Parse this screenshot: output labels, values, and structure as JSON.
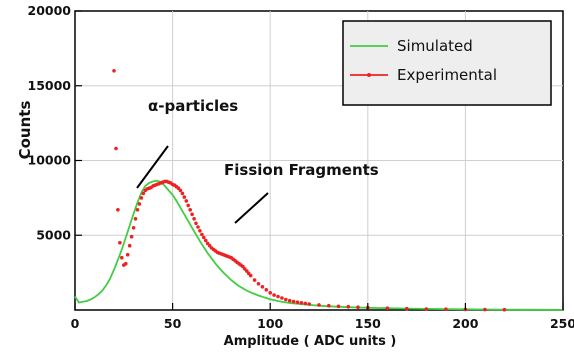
{
  "chart_data": {
    "type": "scatter",
    "xlabel": "Amplitude ( ADC units )",
    "ylabel": "Counts",
    "xlim": [
      0,
      250
    ],
    "ylim": [
      0,
      20000
    ],
    "x_ticks": [
      0,
      50,
      100,
      150,
      200,
      250
    ],
    "y_ticks": [
      5000,
      10000,
      15000,
      20000
    ],
    "grid": true,
    "legend_position": "top-right",
    "annotations": [
      {
        "text": "α-particles",
        "x": 48,
        "y": 13500
      },
      {
        "text": "Fission Fragments",
        "x": 82,
        "y": 9300
      }
    ],
    "series": [
      {
        "name": "Simulated",
        "style": "line",
        "color": "#44cc44",
        "x": [
          0,
          2,
          4,
          6,
          8,
          10,
          12,
          14,
          16,
          18,
          20,
          22,
          24,
          26,
          28,
          30,
          32,
          34,
          36,
          38,
          40,
          42,
          44,
          46,
          48,
          50,
          52,
          54,
          56,
          58,
          60,
          62,
          64,
          66,
          68,
          70,
          72,
          74,
          76,
          78,
          80,
          82,
          84,
          86,
          88,
          90,
          92,
          94,
          96,
          98,
          100,
          102,
          104,
          106,
          108,
          110,
          115,
          120,
          125,
          130,
          140,
          150,
          160,
          170,
          180,
          190,
          200,
          210,
          220,
          230,
          240,
          250
        ],
        "y": [
          900,
          500,
          550,
          600,
          700,
          850,
          1050,
          1300,
          1650,
          2100,
          2700,
          3350,
          4050,
          4850,
          5650,
          6450,
          7200,
          7850,
          8300,
          8500,
          8600,
          8650,
          8550,
          8300,
          8000,
          7700,
          7300,
          6850,
          6400,
          5950,
          5500,
          5050,
          4600,
          4200,
          3800,
          3450,
          3100,
          2800,
          2500,
          2250,
          2000,
          1800,
          1600,
          1450,
          1300,
          1180,
          1070,
          970,
          880,
          800,
          720,
          660,
          600,
          550,
          510,
          470,
          400,
          340,
          290,
          250,
          190,
          150,
          120,
          95,
          75,
          60,
          45,
          35,
          25,
          20,
          15,
          10
        ]
      },
      {
        "name": "Experimental",
        "style": "points",
        "color": "#ee2222",
        "x": [
          20,
          21,
          22,
          23,
          24,
          25,
          26,
          27,
          28,
          29,
          30,
          31,
          32,
          33,
          34,
          35,
          36,
          37,
          38,
          39,
          40,
          41,
          42,
          43,
          44,
          45,
          46,
          47,
          48,
          49,
          50,
          51,
          52,
          53,
          54,
          55,
          56,
          57,
          58,
          59,
          60,
          61,
          62,
          63,
          64,
          65,
          66,
          67,
          68,
          69,
          70,
          71,
          72,
          73,
          74,
          75,
          76,
          77,
          78,
          79,
          80,
          81,
          82,
          83,
          84,
          85,
          86,
          87,
          88,
          89,
          90,
          92,
          94,
          96,
          98,
          100,
          102,
          104,
          106,
          108,
          110,
          112,
          114,
          116,
          118,
          120,
          125,
          130,
          135,
          140,
          145,
          150,
          160,
          170,
          180,
          190,
          200,
          210,
          220
        ],
        "y": [
          16000,
          10800,
          6700,
          4500,
          3500,
          3000,
          3100,
          3700,
          4300,
          4900,
          5500,
          6100,
          6700,
          7100,
          7500,
          7800,
          8000,
          8100,
          8150,
          8200,
          8300,
          8350,
          8400,
          8450,
          8500,
          8550,
          8600,
          8600,
          8550,
          8500,
          8400,
          8350,
          8250,
          8150,
          8000,
          7800,
          7550,
          7300,
          7000,
          6700,
          6400,
          6100,
          5800,
          5550,
          5300,
          5050,
          4850,
          4650,
          4450,
          4300,
          4150,
          4050,
          3950,
          3850,
          3800,
          3750,
          3700,
          3650,
          3600,
          3550,
          3500,
          3400,
          3300,
          3200,
          3100,
          3000,
          2900,
          2750,
          2600,
          2450,
          2300,
          2000,
          1750,
          1550,
          1350,
          1150,
          1000,
          900,
          800,
          700,
          620,
          560,
          520,
          480,
          440,
          400,
          340,
          290,
          250,
          220,
          190,
          160,
          120,
          90,
          70,
          55,
          40,
          30,
          20
        ]
      }
    ]
  }
}
